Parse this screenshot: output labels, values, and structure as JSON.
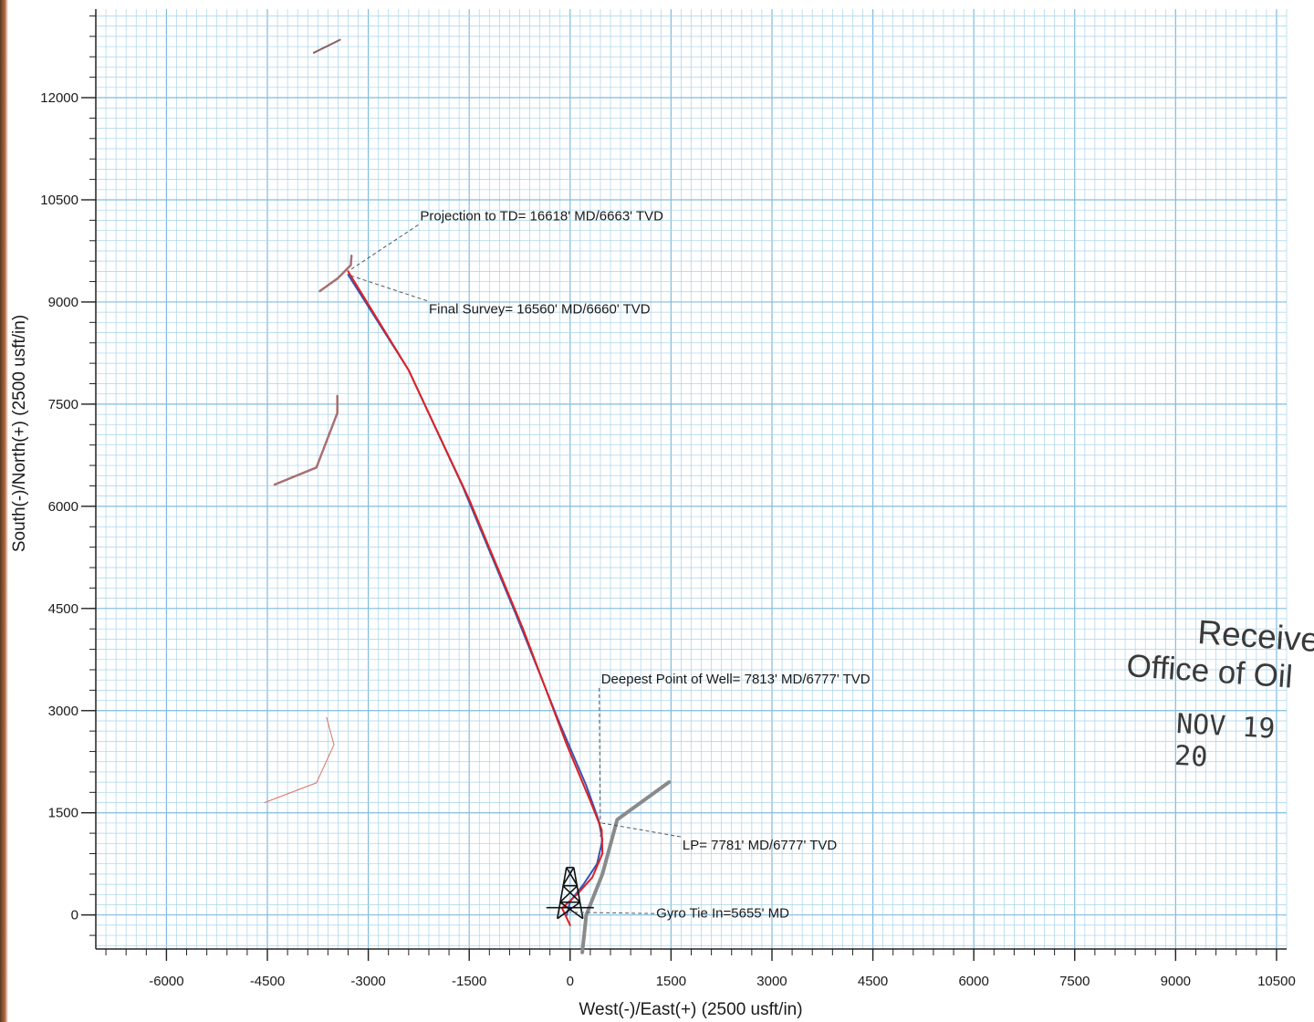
{
  "chart_data": {
    "type": "line",
    "xlabel": "West(-)/East(+) (2500 usft/in)",
    "ylabel": "South(-)/North(+) (2500 usft/in)",
    "xlim": [
      -7050,
      10650
    ],
    "ylim": [
      -500,
      13300
    ],
    "x_ticks": [
      -6000,
      -4500,
      -3000,
      -1500,
      0,
      1500,
      3000,
      4500,
      6000,
      7500,
      9000,
      10500
    ],
    "y_ticks": [
      0,
      1500,
      3000,
      4500,
      6000,
      7500,
      9000,
      10500,
      12000
    ],
    "grid": true,
    "series": [
      {
        "color": "#3a52b0",
        "width": 2,
        "points": [
          [
            -50,
            0
          ],
          [
            0,
            200
          ],
          [
            200,
            450
          ],
          [
            400,
            750
          ],
          [
            480,
            1100
          ],
          [
            420,
            1400
          ],
          [
            240,
            1900
          ],
          [
            -150,
            2800
          ],
          [
            -800,
            4400
          ],
          [
            -1600,
            6300
          ],
          [
            -2400,
            8000
          ],
          [
            -3300,
            9400
          ]
        ]
      },
      {
        "color": "#e02020",
        "width": 2,
        "points": [
          [
            0,
            -150
          ],
          [
            -120,
            100
          ],
          [
            100,
            300
          ],
          [
            330,
            550
          ],
          [
            480,
            900
          ],
          [
            470,
            1250
          ],
          [
            310,
            1650
          ],
          [
            -50,
            2500
          ],
          [
            -700,
            4200
          ],
          [
            -1500,
            6100
          ],
          [
            -2400,
            8000
          ],
          [
            -3300,
            9450
          ]
        ]
      },
      {
        "color": "#8a8a8a",
        "width": 4,
        "points": [
          [
            180,
            -550
          ],
          [
            240,
            0
          ],
          [
            480,
            600
          ],
          [
            700,
            1400
          ],
          [
            1470,
            1950
          ]
        ]
      },
      {
        "color": "#8a6060",
        "width": 2,
        "points": [
          [
            -3810,
            12660
          ],
          [
            -3420,
            12850
          ]
        ]
      },
      {
        "color": "#a87070",
        "width": 2.5,
        "points": [
          [
            -4390,
            6320
          ],
          [
            -3770,
            6570
          ],
          [
            -3460,
            7370
          ],
          [
            -3460,
            7620
          ]
        ]
      },
      {
        "color": "#a87070",
        "width": 2.5,
        "points": [
          [
            -3720,
            9160
          ],
          [
            -3450,
            9350
          ],
          [
            -3260,
            9540
          ],
          [
            -3250,
            9680
          ]
        ]
      },
      {
        "color": "#e07060",
        "width": 1,
        "points": [
          [
            -4540,
            1650
          ],
          [
            -3770,
            1940
          ],
          [
            -3510,
            2500
          ],
          [
            -3620,
            2900
          ]
        ]
      }
    ],
    "annotations": [
      {
        "text": "Projection to TD= 16618' MD/6663' TVD",
        "x": -2230,
        "y": 10200,
        "target": [
          -3300,
          9450
        ]
      },
      {
        "text": "Final Survey= 16560' MD/6660' TVD",
        "x": -2100,
        "y": 8830,
        "target": [
          -3300,
          9400
        ]
      },
      {
        "text": "Deepest Point of Well= 7813' MD/6777' TVD",
        "x": 460,
        "y": 3400,
        "target": [
          450,
          1150
        ]
      },
      {
        "text": "LP= 7781' MD/6777' TVD",
        "x": 1670,
        "y": 960,
        "target": [
          470,
          1350
        ]
      },
      {
        "text": "Gyro Tie In=5655' MD",
        "x": 1280,
        "y": -40,
        "target": [
          0,
          40
        ]
      }
    ],
    "rig_marker": {
      "x": 0,
      "y": 0
    }
  },
  "stamp": {
    "line1": "Receive",
    "line2": "Office of Oil",
    "line3": "NOV 19 20"
  },
  "colors": {
    "grid_minor": "#a9d3ea",
    "grid_major": "#7fbcdf",
    "axis": "#222222"
  }
}
